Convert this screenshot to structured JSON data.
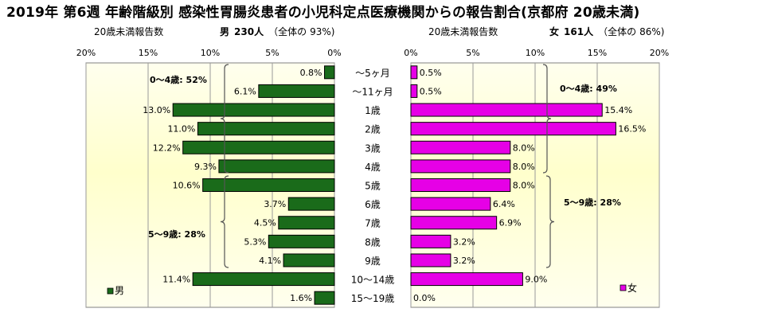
{
  "title": "2019年 第6週 年齢階級別 感染性胃腸炎患者の小児科定点医療機関からの報告割合(京都府 20歳未満)",
  "male_header": {
    "left_label": "20歳未満報告数",
    "sex": "男",
    "count": "230人",
    "share_label": "（全体の",
    "share_value": "93%)"
  },
  "female_header": {
    "left_label": "20歳未満報告数",
    "sex": "女",
    "count": "161人",
    "share_label": "（全体の",
    "share_value": "86%)"
  },
  "colors": {
    "male": "#1a6b1a",
    "female": "#e600e6",
    "panel_bg": "#ffffcc",
    "panel_center": "#ffffee"
  },
  "chart_data": {
    "type": "bar",
    "orientation": "horizontal",
    "categories": [
      "～5ヶ月",
      "～11ヶ月",
      "1歳",
      "2歳",
      "3歳",
      "4歳",
      "5歳",
      "6歳",
      "7歳",
      "8歳",
      "9歳",
      "10～14歳",
      "15～19歳"
    ],
    "male": {
      "legend": "男",
      "xlim": [
        0,
        20
      ],
      "ticks": [
        "20%",
        "15%",
        "10%",
        "5%",
        "0%"
      ],
      "values": [
        0.8,
        6.1,
        13.0,
        11.0,
        12.2,
        9.3,
        10.6,
        3.7,
        4.5,
        5.3,
        4.1,
        11.4,
        1.6
      ],
      "labels": [
        "0.8%",
        "6.1%",
        "13.0%",
        "11.0%",
        "12.2%",
        "9.3%",
        "10.6%",
        "3.7%",
        "4.5%",
        "5.3%",
        "4.1%",
        "11.4%",
        "1.6%"
      ]
    },
    "female": {
      "legend": "女",
      "xlim": [
        0,
        20
      ],
      "ticks": [
        "0%",
        "5%",
        "10%",
        "15%",
        "20%"
      ],
      "values": [
        0.5,
        0.5,
        15.4,
        16.5,
        8.0,
        8.0,
        8.0,
        6.4,
        6.9,
        3.2,
        3.2,
        9.0,
        0.0
      ],
      "labels": [
        "0.5%",
        "0.5%",
        "15.4%",
        "16.5%",
        "8.0%",
        "8.0%",
        "8.0%",
        "6.4%",
        "6.9%",
        "3.2%",
        "3.2%",
        "9.0%",
        "0.0%"
      ]
    },
    "annotations": {
      "male_0_4": "0～4歳: 52%",
      "male_5_9": "5～9歳: 28%",
      "female_0_4": "0～4歳: 49%",
      "female_5_9": "5～9歳: 28%"
    }
  }
}
